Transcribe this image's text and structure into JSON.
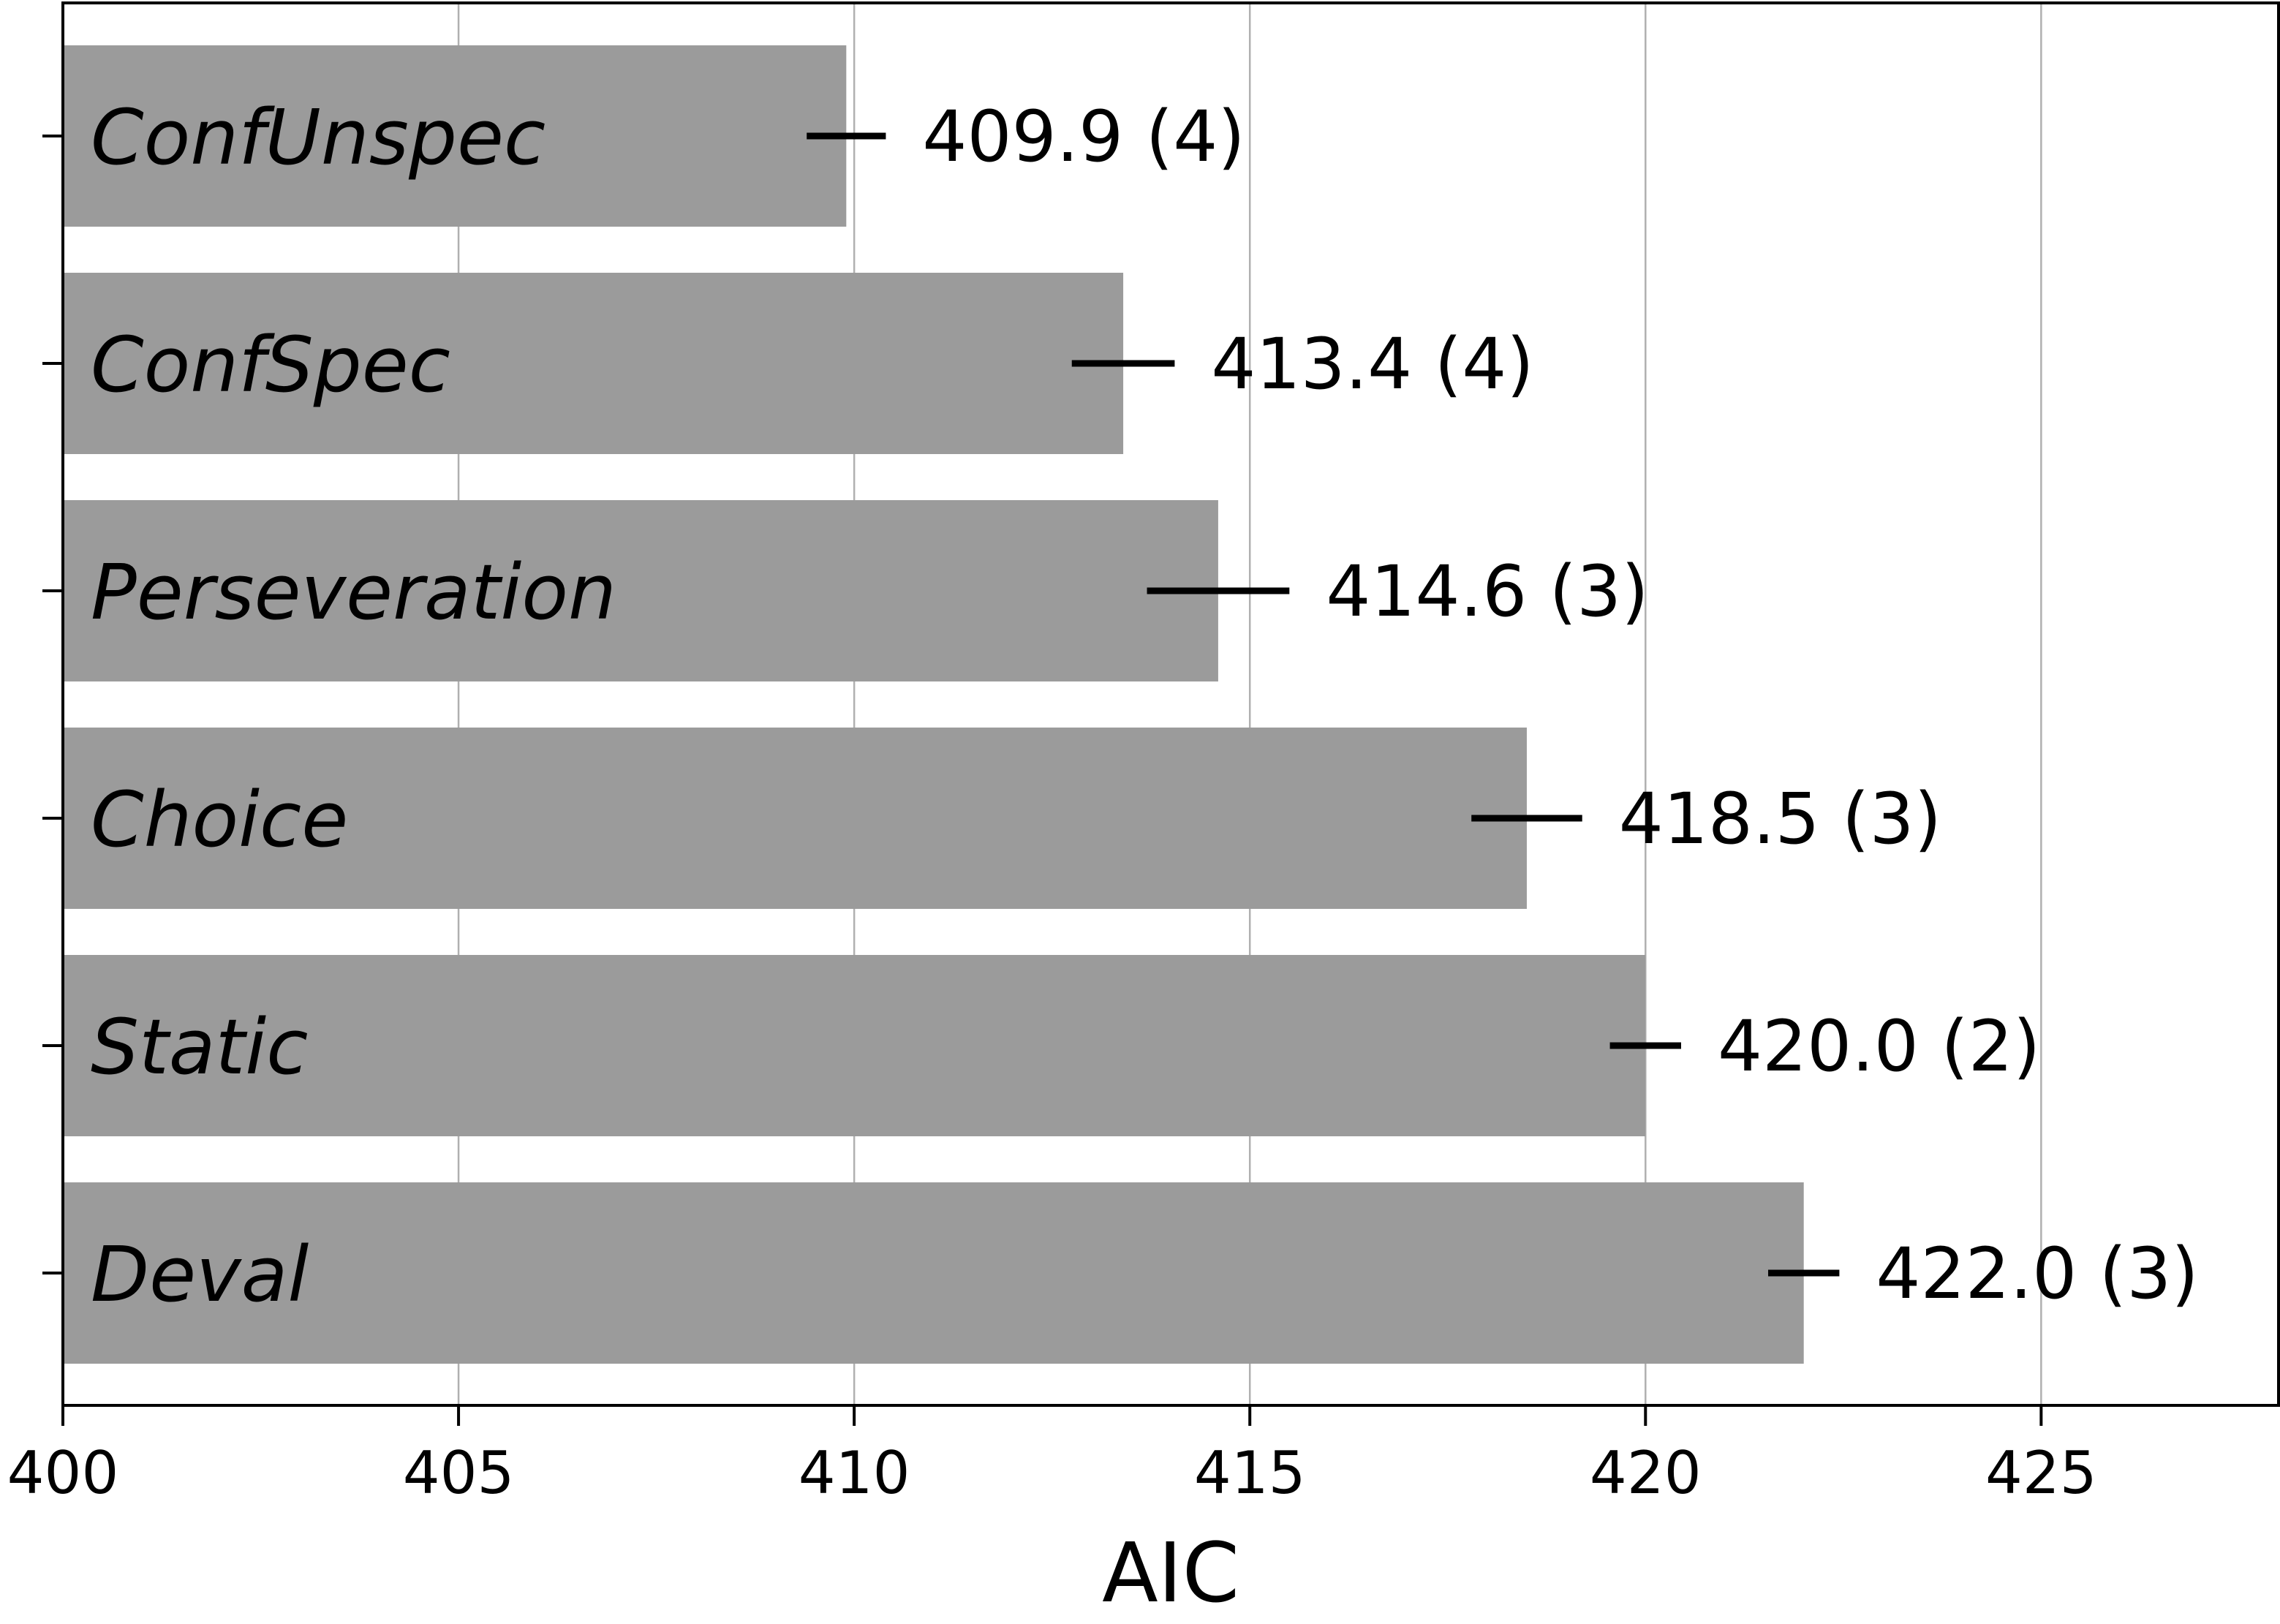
{
  "chart_data": {
    "type": "bar",
    "orientation": "horizontal",
    "categories": [
      "ConfUnspec",
      "ConfSpec",
      "Perseveration",
      "Choice",
      "Static",
      "Deval"
    ],
    "values": [
      409.9,
      413.4,
      414.6,
      418.5,
      420.0,
      422.0
    ],
    "error_half_width": [
      0.5,
      0.65,
      0.9,
      0.7,
      0.45,
      0.45
    ],
    "value_labels": [
      "409.9 (4)",
      "413.4 (4)",
      "414.6 (3)",
      "418.5 (3)",
      "420.0 (2)",
      "422.0 (3)"
    ],
    "xlabel": "AIC",
    "xlim": [
      400,
      428
    ],
    "xticks": [
      400,
      405,
      410,
      415,
      420,
      425
    ],
    "xtick_labels": [
      "400",
      "405",
      "410",
      "415",
      "420",
      "425"
    ],
    "grid": "vertical",
    "colors": {
      "bar": "#9b9b9b",
      "grid": "#b0b0b0",
      "axis": "#000000"
    }
  }
}
